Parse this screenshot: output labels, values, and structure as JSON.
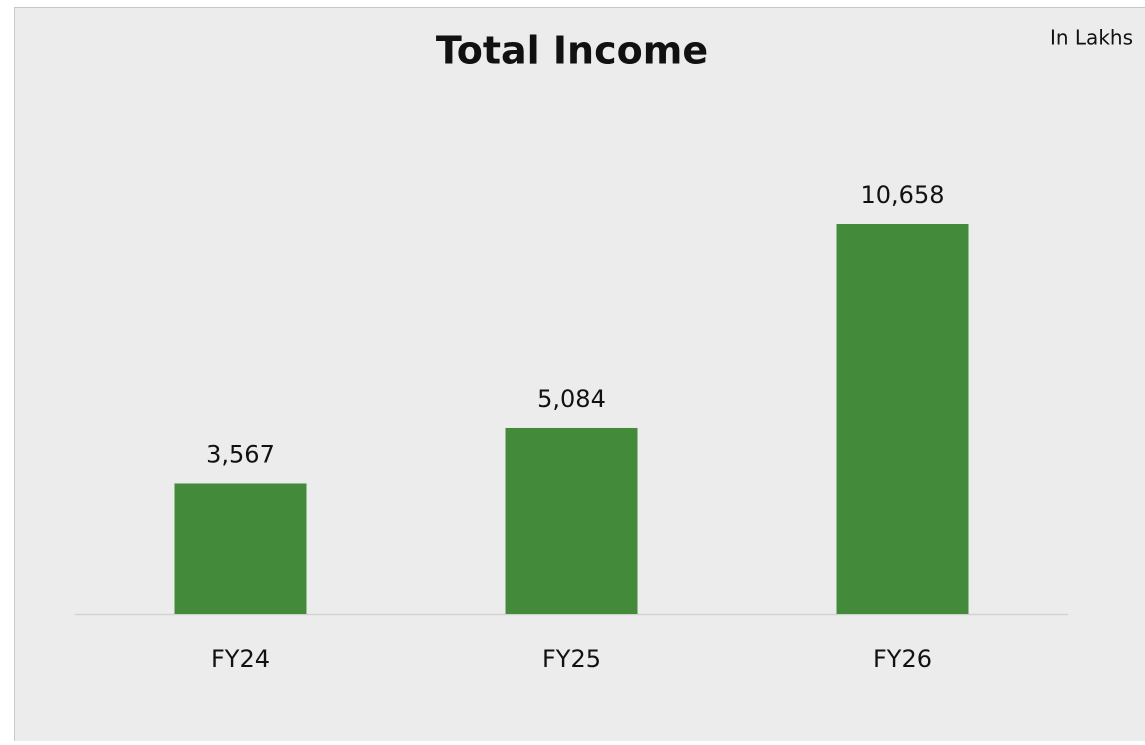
{
  "chart_data": {
    "type": "bar",
    "title": "Total Income",
    "annotation": "In Lakhs",
    "categories": [
      "FY24",
      "FY25",
      "FY26"
    ],
    "values": [
      3567,
      5084,
      10658
    ],
    "value_labels": [
      "3,567",
      "5,084",
      "10,658"
    ],
    "color": "#438b3a"
  }
}
